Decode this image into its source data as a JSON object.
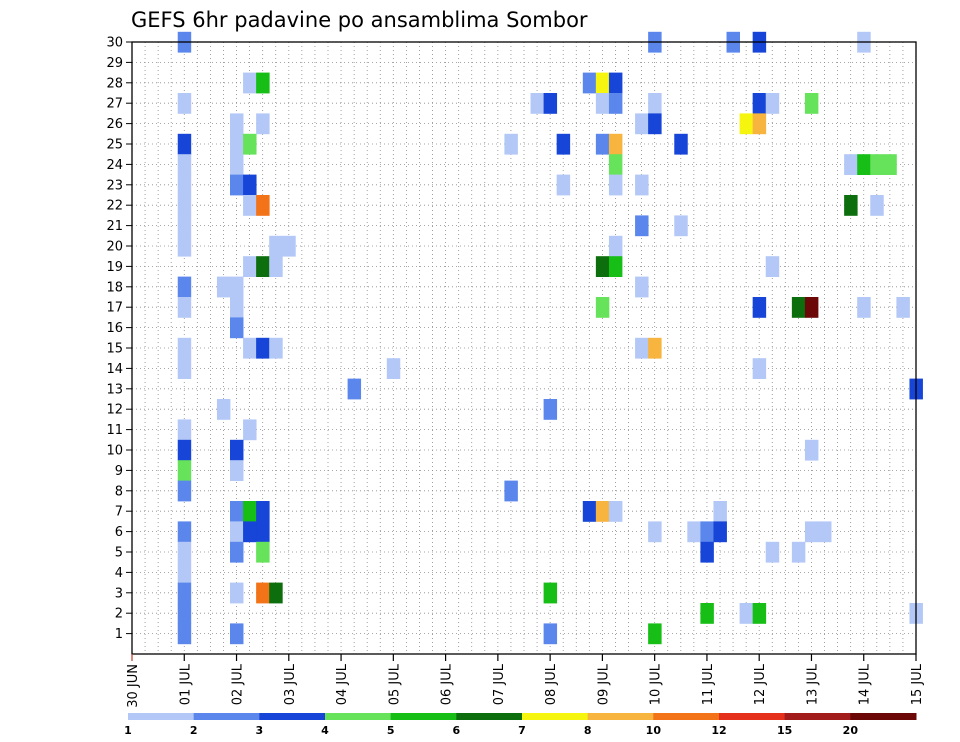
{
  "chart_data": {
    "type": "heatmap",
    "title": "GEFS 6hr padavine po ansamblima Sombor",
    "xlabel": "",
    "ylabel": "",
    "x_tick_labels": [
      "30 JUN",
      "01 JUL",
      "02 JUL",
      "03 JUL",
      "04 JUL",
      "05 JUL",
      "06 JUL",
      "07 JUL",
      "08 JUL",
      "09 JUL",
      "10 JUL",
      "11 JUL",
      "12 JUL",
      "13 JUL",
      "14 JUL",
      "15 JUL"
    ],
    "y_tick_labels": [
      "1",
      "2",
      "3",
      "4",
      "5",
      "6",
      "7",
      "8",
      "9",
      "10",
      "11",
      "12",
      "13",
      "14",
      "15",
      "16",
      "17",
      "18",
      "19",
      "20",
      "21",
      "22",
      "23",
      "24",
      "25",
      "26",
      "27",
      "28",
      "29",
      "30"
    ],
    "x_unit": "days since 30 JUN 00Z",
    "y_unit": "ensemble member",
    "xlim": [
      0,
      15
    ],
    "ylim": [
      0,
      30
    ],
    "grid": true,
    "legend_placement": "bottom colorbar",
    "colorbar_labels": [
      "1",
      "2",
      "3",
      "4",
      "5",
      "6",
      "7",
      "8",
      "10",
      "12",
      "15",
      "20"
    ],
    "colorbar_colors": [
      "#b3c8f7",
      "#5b87ec",
      "#1745d8",
      "#66e35a",
      "#16be16",
      "#0c6e0c",
      "#f6f50f",
      "#f7b43f",
      "#f27318",
      "#e5301c",
      "#a21c1c",
      "#6b0707"
    ],
    "cells": [
      {
        "x": 1.0,
        "y": 30,
        "c": 1
      },
      {
        "x": 10.0,
        "y": 30,
        "c": 1
      },
      {
        "x": 11.5,
        "y": 30,
        "c": 1
      },
      {
        "x": 12.0,
        "y": 30,
        "c": 2
      },
      {
        "x": 14.0,
        "y": 30,
        "c": 0
      },
      {
        "x": 2.25,
        "y": 28,
        "c": 0
      },
      {
        "x": 2.5,
        "y": 28,
        "c": 4
      },
      {
        "x": 8.75,
        "y": 28,
        "c": 1
      },
      {
        "x": 9.0,
        "y": 28,
        "c": 6
      },
      {
        "x": 9.25,
        "y": 28,
        "c": 2
      },
      {
        "x": 1.0,
        "y": 27,
        "c": 0
      },
      {
        "x": 7.75,
        "y": 27,
        "c": 0
      },
      {
        "x": 8.0,
        "y": 27,
        "c": 2
      },
      {
        "x": 9.0,
        "y": 27,
        "c": 0
      },
      {
        "x": 9.25,
        "y": 27,
        "c": 1
      },
      {
        "x": 10.0,
        "y": 27,
        "c": 0
      },
      {
        "x": 12.0,
        "y": 27,
        "c": 2
      },
      {
        "x": 12.25,
        "y": 27,
        "c": 0
      },
      {
        "x": 13.0,
        "y": 27,
        "c": 3
      },
      {
        "x": 2.0,
        "y": 26,
        "c": 0
      },
      {
        "x": 2.5,
        "y": 26,
        "c": 0
      },
      {
        "x": 9.75,
        "y": 26,
        "c": 0
      },
      {
        "x": 10.0,
        "y": 26,
        "c": 2
      },
      {
        "x": 11.75,
        "y": 26,
        "c": 6
      },
      {
        "x": 12.0,
        "y": 26,
        "c": 7
      },
      {
        "x": 1.0,
        "y": 25,
        "c": 2
      },
      {
        "x": 2.0,
        "y": 25,
        "c": 0
      },
      {
        "x": 2.25,
        "y": 25,
        "c": 3
      },
      {
        "x": 7.25,
        "y": 25,
        "c": 0
      },
      {
        "x": 8.25,
        "y": 25,
        "c": 2
      },
      {
        "x": 9.0,
        "y": 25,
        "c": 1
      },
      {
        "x": 9.25,
        "y": 25,
        "c": 7
      },
      {
        "x": 10.5,
        "y": 25,
        "c": 2
      },
      {
        "x": 1.0,
        "y": 24,
        "c": 0
      },
      {
        "x": 2.0,
        "y": 24,
        "c": 0
      },
      {
        "x": 9.25,
        "y": 24,
        "c": 3
      },
      {
        "x": 13.75,
        "y": 24,
        "c": 0
      },
      {
        "x": 14.0,
        "y": 24,
        "c": 4
      },
      {
        "x": 14.25,
        "y": 24,
        "c": 3
      },
      {
        "x": 14.5,
        "y": 24,
        "c": 3
      },
      {
        "x": 1.0,
        "y": 23,
        "c": 0
      },
      {
        "x": 2.0,
        "y": 23,
        "c": 1
      },
      {
        "x": 2.25,
        "y": 23,
        "c": 2
      },
      {
        "x": 8.25,
        "y": 23,
        "c": 0
      },
      {
        "x": 9.25,
        "y": 23,
        "c": 0
      },
      {
        "x": 9.75,
        "y": 23,
        "c": 0
      },
      {
        "x": 1.0,
        "y": 22,
        "c": 0
      },
      {
        "x": 2.25,
        "y": 22,
        "c": 0
      },
      {
        "x": 2.5,
        "y": 22,
        "c": 8
      },
      {
        "x": 13.75,
        "y": 22,
        "c": 5
      },
      {
        "x": 14.25,
        "y": 22,
        "c": 0
      },
      {
        "x": 1.0,
        "y": 21,
        "c": 0
      },
      {
        "x": 9.75,
        "y": 21,
        "c": 1
      },
      {
        "x": 10.5,
        "y": 21,
        "c": 0
      },
      {
        "x": 1.0,
        "y": 20,
        "c": 0
      },
      {
        "x": 2.75,
        "y": 20,
        "c": 0
      },
      {
        "x": 3.0,
        "y": 20,
        "c": 0
      },
      {
        "x": 9.25,
        "y": 20,
        "c": 0
      },
      {
        "x": 2.25,
        "y": 19,
        "c": 0
      },
      {
        "x": 2.5,
        "y": 19,
        "c": 5
      },
      {
        "x": 2.75,
        "y": 19,
        "c": 0
      },
      {
        "x": 9.0,
        "y": 19,
        "c": 5
      },
      {
        "x": 9.25,
        "y": 19,
        "c": 4
      },
      {
        "x": 12.25,
        "y": 19,
        "c": 0
      },
      {
        "x": 1.0,
        "y": 18,
        "c": 1
      },
      {
        "x": 1.75,
        "y": 18,
        "c": 0
      },
      {
        "x": 2.0,
        "y": 18,
        "c": 0
      },
      {
        "x": 9.75,
        "y": 18,
        "c": 0
      },
      {
        "x": 1.0,
        "y": 17,
        "c": 0
      },
      {
        "x": 2.0,
        "y": 17,
        "c": 0
      },
      {
        "x": 9.0,
        "y": 17,
        "c": 3
      },
      {
        "x": 12.0,
        "y": 17,
        "c": 2
      },
      {
        "x": 12.75,
        "y": 17,
        "c": 5
      },
      {
        "x": 13.0,
        "y": 17,
        "c": 11
      },
      {
        "x": 14.0,
        "y": 17,
        "c": 0
      },
      {
        "x": 14.75,
        "y": 17,
        "c": 0
      },
      {
        "x": 2.0,
        "y": 16,
        "c": 1
      },
      {
        "x": 1.0,
        "y": 15,
        "c": 0
      },
      {
        "x": 2.25,
        "y": 15,
        "c": 0
      },
      {
        "x": 2.5,
        "y": 15,
        "c": 2
      },
      {
        "x": 2.75,
        "y": 15,
        "c": 0
      },
      {
        "x": 9.75,
        "y": 15,
        "c": 0
      },
      {
        "x": 10.0,
        "y": 15,
        "c": 7
      },
      {
        "x": 1.0,
        "y": 14,
        "c": 0
      },
      {
        "x": 5.0,
        "y": 14,
        "c": 0
      },
      {
        "x": 12.0,
        "y": 14,
        "c": 0
      },
      {
        "x": 4.25,
        "y": 13,
        "c": 1
      },
      {
        "x": 15.0,
        "y": 13,
        "c": 2
      },
      {
        "x": 1.75,
        "y": 12,
        "c": 0
      },
      {
        "x": 8.0,
        "y": 12,
        "c": 1
      },
      {
        "x": 1.0,
        "y": 11,
        "c": 0
      },
      {
        "x": 2.25,
        "y": 11,
        "c": 0
      },
      {
        "x": 1.0,
        "y": 10,
        "c": 2
      },
      {
        "x": 2.0,
        "y": 10,
        "c": 2
      },
      {
        "x": 13.0,
        "y": 10,
        "c": 0
      },
      {
        "x": 1.0,
        "y": 9,
        "c": 3
      },
      {
        "x": 2.0,
        "y": 9,
        "c": 0
      },
      {
        "x": 1.0,
        "y": 8,
        "c": 1
      },
      {
        "x": 7.25,
        "y": 8,
        "c": 1
      },
      {
        "x": 2.0,
        "y": 7,
        "c": 1
      },
      {
        "x": 2.25,
        "y": 7,
        "c": 4
      },
      {
        "x": 2.5,
        "y": 7,
        "c": 2
      },
      {
        "x": 8.75,
        "y": 7,
        "c": 2
      },
      {
        "x": 9.0,
        "y": 7,
        "c": 7
      },
      {
        "x": 9.25,
        "y": 7,
        "c": 0
      },
      {
        "x": 11.25,
        "y": 7,
        "c": 0
      },
      {
        "x": 1.0,
        "y": 6,
        "c": 1
      },
      {
        "x": 2.0,
        "y": 6,
        "c": 0
      },
      {
        "x": 2.25,
        "y": 6,
        "c": 2
      },
      {
        "x": 2.5,
        "y": 6,
        "c": 2
      },
      {
        "x": 10.0,
        "y": 6,
        "c": 0
      },
      {
        "x": 10.75,
        "y": 6,
        "c": 0
      },
      {
        "x": 11.0,
        "y": 6,
        "c": 1
      },
      {
        "x": 11.25,
        "y": 6,
        "c": 2
      },
      {
        "x": 13.0,
        "y": 6,
        "c": 0
      },
      {
        "x": 13.25,
        "y": 6,
        "c": 0
      },
      {
        "x": 1.0,
        "y": 5,
        "c": 0
      },
      {
        "x": 2.0,
        "y": 5,
        "c": 1
      },
      {
        "x": 2.5,
        "y": 5,
        "c": 3
      },
      {
        "x": 11.0,
        "y": 5,
        "c": 2
      },
      {
        "x": 12.25,
        "y": 5,
        "c": 0
      },
      {
        "x": 12.75,
        "y": 5,
        "c": 0
      },
      {
        "x": 1.0,
        "y": 4,
        "c": 0
      },
      {
        "x": 1.0,
        "y": 3,
        "c": 1
      },
      {
        "x": 2.0,
        "y": 3,
        "c": 0
      },
      {
        "x": 2.5,
        "y": 3,
        "c": 8
      },
      {
        "x": 2.75,
        "y": 3,
        "c": 5
      },
      {
        "x": 8.0,
        "y": 3,
        "c": 4
      },
      {
        "x": 1.0,
        "y": 2,
        "c": 1
      },
      {
        "x": 11.0,
        "y": 2,
        "c": 4
      },
      {
        "x": 11.75,
        "y": 2,
        "c": 0
      },
      {
        "x": 12.0,
        "y": 2,
        "c": 4
      },
      {
        "x": 15.0,
        "y": 2,
        "c": 0
      },
      {
        "x": 1.0,
        "y": 1,
        "c": 1
      },
      {
        "x": 2.0,
        "y": 1,
        "c": 1
      },
      {
        "x": 8.0,
        "y": 1,
        "c": 1
      },
      {
        "x": 10.0,
        "y": 1,
        "c": 4
      }
    ]
  }
}
